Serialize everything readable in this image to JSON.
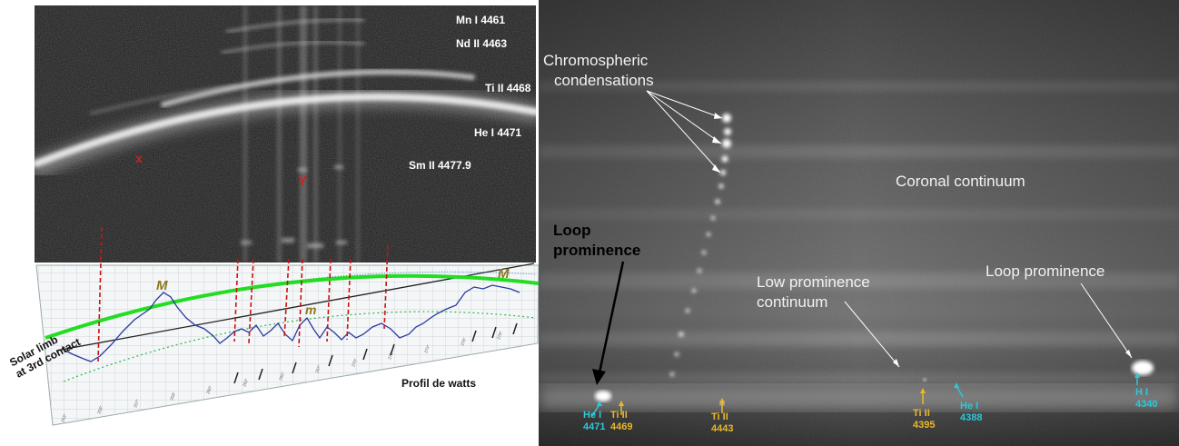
{
  "left_spectrum": {
    "line_labels": [
      "Mn I 4461",
      "Nd II 4463",
      "Ti II 4468",
      "He I 4471",
      "Sm II 4477.9"
    ],
    "marker_x": "x",
    "marker_y": "Y"
  },
  "watts_profile": {
    "max_label_left": "M",
    "max_label_right": "M",
    "min_label": "m",
    "limb_label_line1": "Solar limb",
    "limb_label_line2": "at 3rd contact",
    "caption": "Profil de watts"
  },
  "right_spectrum": {
    "chromo_label_line1": "Chromospheric",
    "chromo_label_line2": "condensations",
    "coronal_label": "Coronal continuum",
    "loop_left_line1": "Loop",
    "loop_left_line2": "prominence",
    "low_prom_line1": "Low prominence",
    "low_prom_line2": "continuum",
    "loop_right_label": "Loop prominence",
    "bottom_markers": [
      {
        "name": "He I",
        "wave": "4471",
        "color": "#2ec8d8"
      },
      {
        "name": "Ti II",
        "wave": "4469",
        "color": "#e8b82a"
      },
      {
        "name": "Ti II",
        "wave": "4443",
        "color": "#e8b82a"
      },
      {
        "name": "Ti II",
        "wave": "4395",
        "color": "#e8b82a"
      },
      {
        "name": "He I",
        "wave": "4388",
        "color": "#2ec8d8"
      },
      {
        "name": "H I",
        "wave": "4340",
        "color": "#2ec8d8"
      }
    ]
  }
}
